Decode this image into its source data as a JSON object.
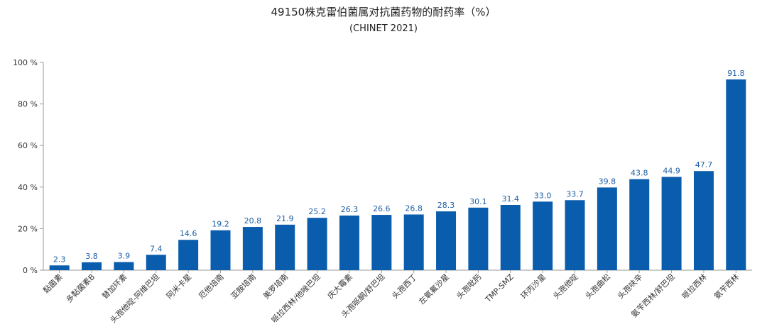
{
  "chart_data": {
    "type": "bar",
    "title": "49150株克雷伯菌属对抗菌药物的耐药率（%）",
    "subtitle": "(CHINET 2021)",
    "xlabel": "",
    "ylabel": "",
    "ylim": [
      0,
      100
    ],
    "yticks": [
      "0 %",
      "20 %",
      "40 %",
      "60 %",
      "80 %",
      "100 %"
    ],
    "grid": false,
    "bar_color": "#0a5cac",
    "label_color": "#1f5fa6",
    "categories": [
      "黏菌素",
      "多黏菌素B",
      "替加环素",
      "头孢他啶-阿维巴坦",
      "阿米卡星",
      "厄他培南",
      "亚胺培南",
      "美罗培南",
      "哌拉西林/他唑巴坦",
      "庆大霉素",
      "头孢哌酮/舒巴坦",
      "头孢西丁",
      "左氧氟沙星",
      "头孢吡肟",
      "TMP-SMZ",
      "环丙沙星",
      "头孢他啶",
      "头孢曲松",
      "头孢呋辛",
      "氨苄西林/舒巴坦",
      "哌拉西林",
      "氨苄西林"
    ],
    "values": [
      2.3,
      3.8,
      3.9,
      7.4,
      14.6,
      19.2,
      20.8,
      21.9,
      25.2,
      26.3,
      26.6,
      26.8,
      28.3,
      30.1,
      31.4,
      33.0,
      33.7,
      39.8,
      43.8,
      44.9,
      47.7,
      91.8
    ],
    "value_labels": [
      "2.3",
      "3.8",
      "3.9",
      "7.4",
      "14.6",
      "19.2",
      "20.8",
      "21.9",
      "25.2",
      "26.3",
      "26.6",
      "26.8",
      "28.3",
      "30.1",
      "31.4",
      "33.0",
      "33.7",
      "39.8",
      "43.8",
      "44.9",
      "47.7",
      "91.8"
    ]
  }
}
